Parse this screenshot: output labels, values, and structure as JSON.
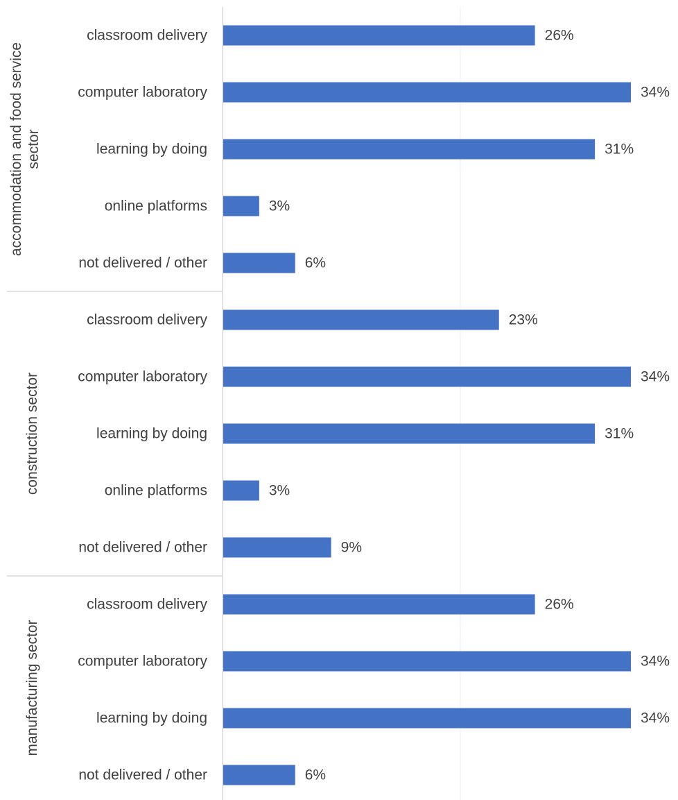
{
  "chart_data": {
    "type": "bar",
    "orientation": "horizontal",
    "value_unit": "%",
    "xlim": [
      0,
      34
    ],
    "grid": true,
    "bar_color": "#4472C4",
    "groups": [
      {
        "label": "accommodation and food service sector",
        "categories": [
          "classroom delivery",
          "computer laboratory",
          "learning by doing",
          "online platforms",
          "not delivered / other"
        ],
        "values": [
          26,
          34,
          31,
          3,
          6
        ],
        "value_labels": [
          "26%",
          "34%",
          "31%",
          "3%",
          "6%"
        ]
      },
      {
        "label": "construction sector",
        "categories": [
          "classroom delivery",
          "computer laboratory",
          "learning by doing",
          "online platforms",
          "not delivered / other"
        ],
        "values": [
          23,
          34,
          31,
          3,
          9
        ],
        "value_labels": [
          "23%",
          "34%",
          "31%",
          "3%",
          "9%"
        ]
      },
      {
        "label": "manufacturing sector",
        "categories": [
          "classroom delivery",
          "computer laboratory",
          "learning by doing",
          "not delivered / other"
        ],
        "values": [
          26,
          34,
          34,
          6
        ],
        "value_labels": [
          "26%",
          "34%",
          "34%",
          "6%"
        ]
      }
    ]
  }
}
